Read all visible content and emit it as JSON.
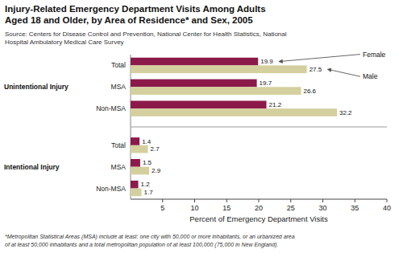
{
  "chart_data": {
    "type": "bar",
    "orientation": "horizontal",
    "title": "Injury-Related Emergency Department Visits Among Adults\nAged 18 and Older, by Area of Residence* and Sex, 2005",
    "annotations": [
      "Source: Centers for Disease Control and Prevention, National Center for Health Statistics, National\nHospital Ambulatory Medical Care Survey",
      "*Metropolitan Statistical Areas (MSA) include at least: one city with 50,000 or more inhabitants, or an urbanized area\nof at least 50,000 inhabitants and a total metropolitan population of at least 100,000 (75,000 in New England)."
    ],
    "x_label": "Percent of Emergency Department Visits",
    "categories": [
      "Total",
      "MSA",
      "Non-MSA",
      "Total",
      "MSA",
      "Non-MSA"
    ],
    "category_groups": [
      "Unintentional Injury",
      "Unintentional Injury",
      "Unintentional Injury",
      "Intentional Injury",
      "Intentional Injury",
      "Intentional Injury"
    ],
    "series": [
      {
        "name": "Female",
        "color": "#8B1A4A",
        "values": [
          19.9,
          19.7,
          21.2,
          1.4,
          1.5,
          1.2
        ]
      },
      {
        "name": "Male",
        "color": "#D4CF9E",
        "values": [
          27.5,
          26.6,
          32.2,
          2.7,
          2.9,
          1.7
        ]
      }
    ],
    "xlim": [
      0,
      40
    ],
    "xticks": [
      5,
      10,
      15,
      20,
      25,
      30,
      35,
      40
    ],
    "grid": false,
    "data_labels": true
  }
}
